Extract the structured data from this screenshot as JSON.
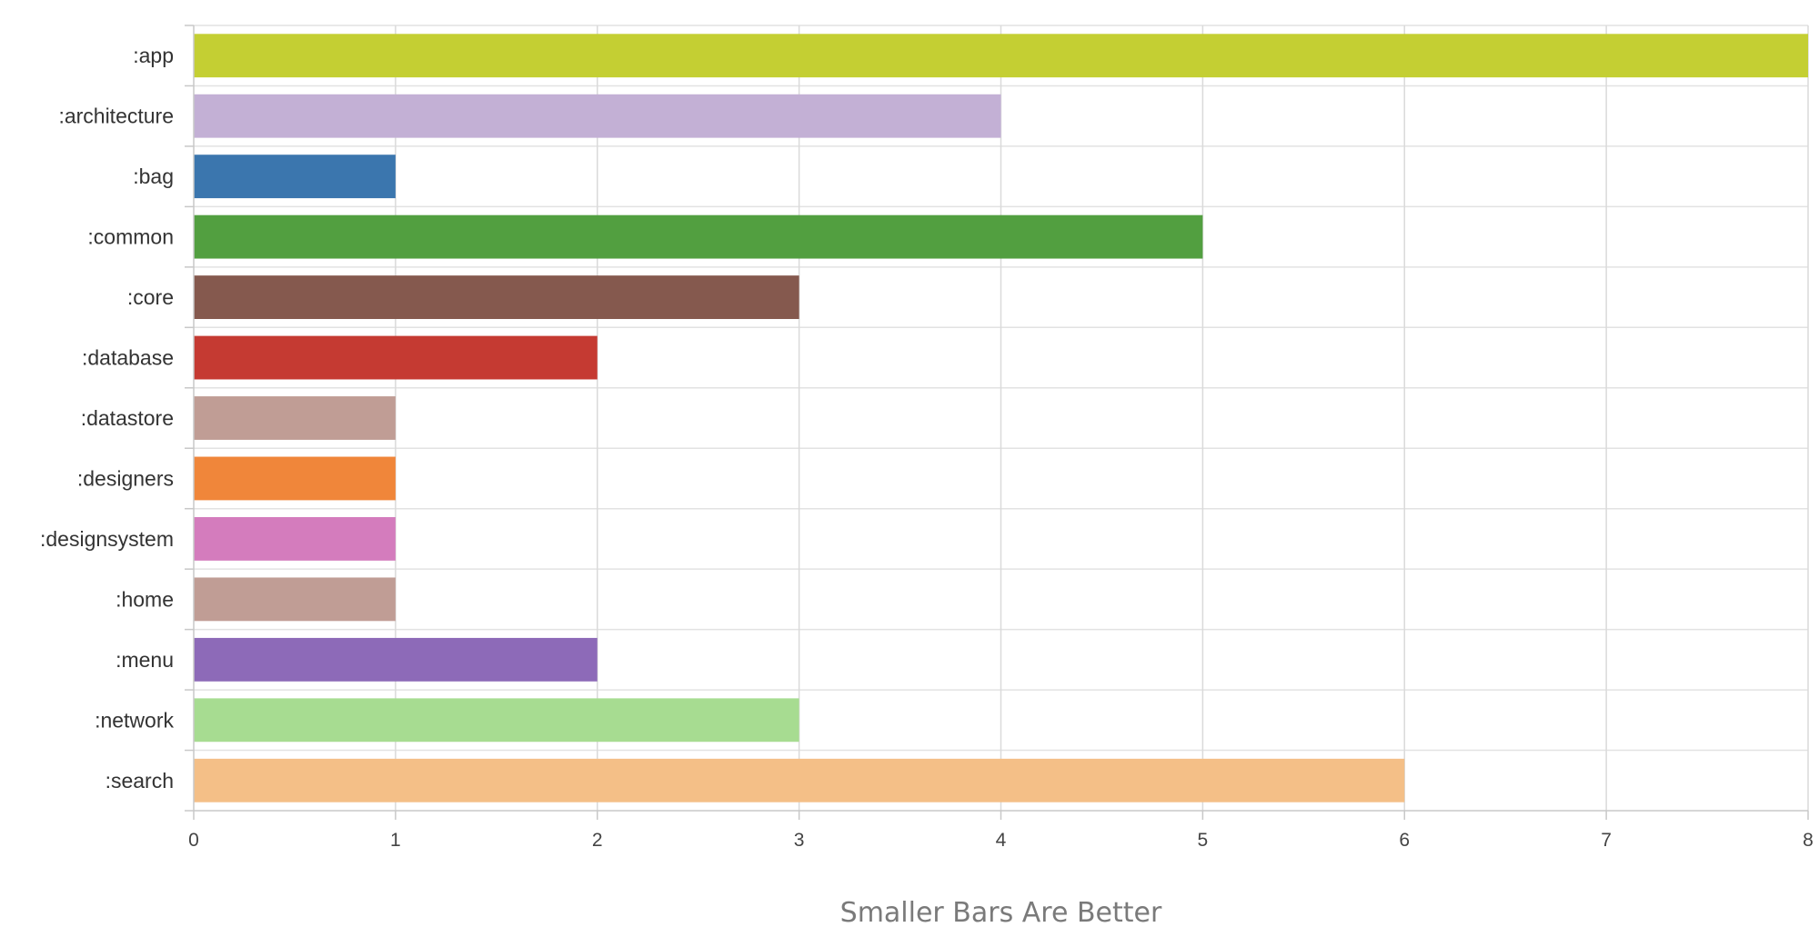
{
  "chart_data": {
    "type": "bar",
    "orientation": "horizontal",
    "categories": [
      ":app",
      ":architecture",
      ":bag",
      ":common",
      ":core",
      ":database",
      ":datastore",
      ":designers",
      ":designsystem",
      ":home",
      ":menu",
      ":network",
      ":search"
    ],
    "values": [
      8,
      4,
      1,
      5,
      3,
      2,
      1,
      1,
      1,
      1,
      2,
      3,
      6
    ],
    "colors": [
      "#c4cf33",
      "#c3b0d5",
      "#3b76ae",
      "#529f40",
      "#85594e",
      "#c53a32",
      "#c09d95",
      "#f0863a",
      "#d47cbd",
      "#c09d95",
      "#8d6ab8",
      "#a7dc91",
      "#f4bf87"
    ],
    "xlabel": "Smaller Bars Are Better",
    "ylabel": "",
    "title": "",
    "xlim": [
      0,
      8
    ],
    "xticks": [
      "0",
      "1",
      "2",
      "3",
      "4",
      "5",
      "6",
      "7",
      "8"
    ],
    "grid": true,
    "legend": "none"
  }
}
